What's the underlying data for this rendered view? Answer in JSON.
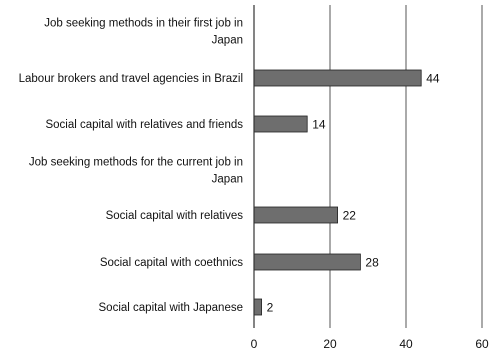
{
  "chart_data": {
    "type": "bar",
    "orientation": "horizontal",
    "categories": [
      [
        "Job seeking methods in their first job in",
        "Japan"
      ],
      [
        "Labour brokers and travel agencies in Brazil"
      ],
      [
        "Social capital with relatives and friends"
      ],
      [
        "Job seeking methods for the current job in",
        "Japan"
      ],
      [
        "Social capital with relatives"
      ],
      [
        "Social capital with coethnics"
      ],
      [
        "Social capital with Japanese"
      ]
    ],
    "values": [
      null,
      44,
      14,
      null,
      22,
      28,
      2
    ],
    "value_labels": [
      "",
      "44",
      "14",
      "",
      "22",
      "28",
      "2"
    ],
    "xlim": [
      0,
      60
    ],
    "xticks": [
      0,
      20,
      40,
      60
    ],
    "xtick_labels": [
      "0",
      "20",
      "40",
      "60"
    ],
    "grid": "vertical",
    "bar_color": "#6e6e6e",
    "bar_edge_color": "#222222"
  }
}
